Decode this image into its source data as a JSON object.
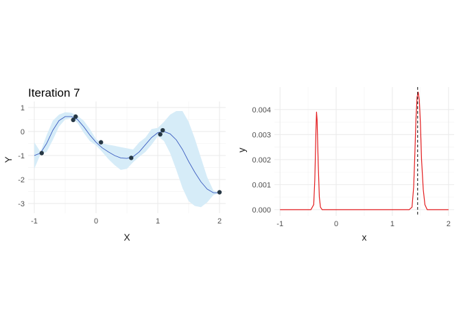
{
  "chart_data": [
    {
      "type": "line",
      "title": "Iteration 7",
      "xlabel": "X",
      "ylabel": "Y",
      "xlim": [
        -1.1,
        2.1
      ],
      "ylim": [
        -3.4,
        1.25
      ],
      "x_ticks": [
        -1,
        0,
        1,
        2
      ],
      "x_tick_labels": [
        "-1",
        "0",
        "1",
        "2"
      ],
      "y_ticks": [
        -3,
        -2,
        -1,
        0,
        1
      ],
      "y_tick_labels": [
        "-3",
        "-2",
        "-1",
        "0",
        "1"
      ],
      "grid": true,
      "colors": {
        "line": "#3a5bbf",
        "band": "#d6ecf8",
        "points": "#273845"
      },
      "series": [
        {
          "type": "line",
          "x": [
            -1.0,
            -0.9,
            -0.8,
            -0.7,
            -0.6,
            -0.5,
            -0.4,
            -0.3,
            -0.2,
            -0.1,
            0.0,
            0.1,
            0.2,
            0.3,
            0.4,
            0.5,
            0.6,
            0.7,
            0.8,
            0.9,
            1.0,
            1.1,
            1.2,
            1.3,
            1.4,
            1.5,
            1.6,
            1.7,
            1.8,
            1.9,
            2.0
          ],
          "y": [
            -1.0,
            -0.9,
            -0.5,
            0.05,
            0.45,
            0.62,
            0.62,
            0.5,
            0.2,
            -0.15,
            -0.45,
            -0.68,
            -0.85,
            -1.0,
            -1.1,
            -1.12,
            -1.05,
            -0.85,
            -0.55,
            -0.25,
            -0.05,
            0.0,
            -0.1,
            -0.35,
            -0.75,
            -1.25,
            -1.7,
            -2.1,
            -2.4,
            -2.55,
            -2.55
          ]
        },
        {
          "type": "band",
          "x": [
            -1.0,
            -0.9,
            -0.8,
            -0.7,
            -0.6,
            -0.5,
            -0.4,
            -0.3,
            -0.2,
            -0.1,
            0.0,
            0.1,
            0.2,
            0.3,
            0.4,
            0.5,
            0.6,
            0.7,
            0.8,
            0.9,
            1.0,
            1.1,
            1.2,
            1.3,
            1.4,
            1.5,
            1.6,
            1.7,
            1.8,
            1.9,
            2.0
          ],
          "lower": [
            -1.55,
            -0.95,
            -0.85,
            -0.35,
            0.2,
            0.5,
            0.55,
            0.35,
            -0.05,
            -0.4,
            -0.58,
            -0.85,
            -1.15,
            -1.4,
            -1.6,
            -1.55,
            -1.28,
            -1.05,
            -0.85,
            -0.55,
            -0.2,
            -0.4,
            -0.9,
            -1.6,
            -2.35,
            -2.9,
            -3.1,
            -3.15,
            -2.95,
            -2.65,
            -2.55
          ],
          "upper": [
            -0.45,
            -0.85,
            -0.15,
            0.45,
            0.7,
            0.8,
            0.78,
            0.65,
            0.45,
            0.1,
            -0.32,
            -0.5,
            -0.55,
            -0.6,
            -0.65,
            -0.7,
            -0.75,
            -0.45,
            -0.25,
            0.1,
            0.15,
            0.4,
            0.7,
            0.85,
            0.85,
            0.4,
            -0.3,
            -1.1,
            -1.9,
            -2.45,
            -2.55
          ]
        },
        {
          "type": "scatter",
          "x": [
            -0.88,
            -0.37,
            -0.33,
            0.08,
            0.57,
            1.04,
            1.08,
            2.0
          ],
          "y": [
            -0.9,
            0.48,
            0.62,
            -0.45,
            -1.1,
            -0.12,
            0.05,
            -2.53
          ]
        }
      ]
    },
    {
      "type": "line",
      "title": "",
      "xlabel": "x",
      "ylabel": "y",
      "xlim": [
        -1.1,
        2.1
      ],
      "ylim": [
        -0.00025,
        0.0049
      ],
      "x_ticks": [
        -1,
        0,
        1,
        2
      ],
      "x_tick_labels": [
        "-1",
        "0",
        "1",
        "2"
      ],
      "y_ticks": [
        0,
        0.001,
        0.002,
        0.003,
        0.004
      ],
      "y_tick_labels": [
        "0.000",
        "0.001",
        "0.002",
        "0.003",
        "0.004"
      ],
      "grid": true,
      "colors": {
        "line": "#e31a1c",
        "vline": "#000000"
      },
      "series": [
        {
          "type": "line",
          "x": [
            -1.0,
            -0.45,
            -0.4,
            -0.38,
            -0.36,
            -0.35,
            -0.34,
            -0.32,
            -0.3,
            -0.28,
            -0.25,
            1.3,
            1.35,
            1.38,
            1.4,
            1.42,
            1.44,
            1.46,
            1.48,
            1.5,
            1.52,
            1.55,
            1.58,
            1.62,
            2.0
          ],
          "y": [
            0,
            0,
            0.0002,
            0.0012,
            0.0032,
            0.0039,
            0.0036,
            0.0018,
            0.0005,
            0.0001,
            0,
            0,
            0.0001,
            0.0009,
            0.0022,
            0.0036,
            0.0045,
            0.0047,
            0.0044,
            0.0034,
            0.002,
            0.0008,
            0.0002,
            0,
            0
          ]
        }
      ],
      "vline": 1.45
    }
  ]
}
